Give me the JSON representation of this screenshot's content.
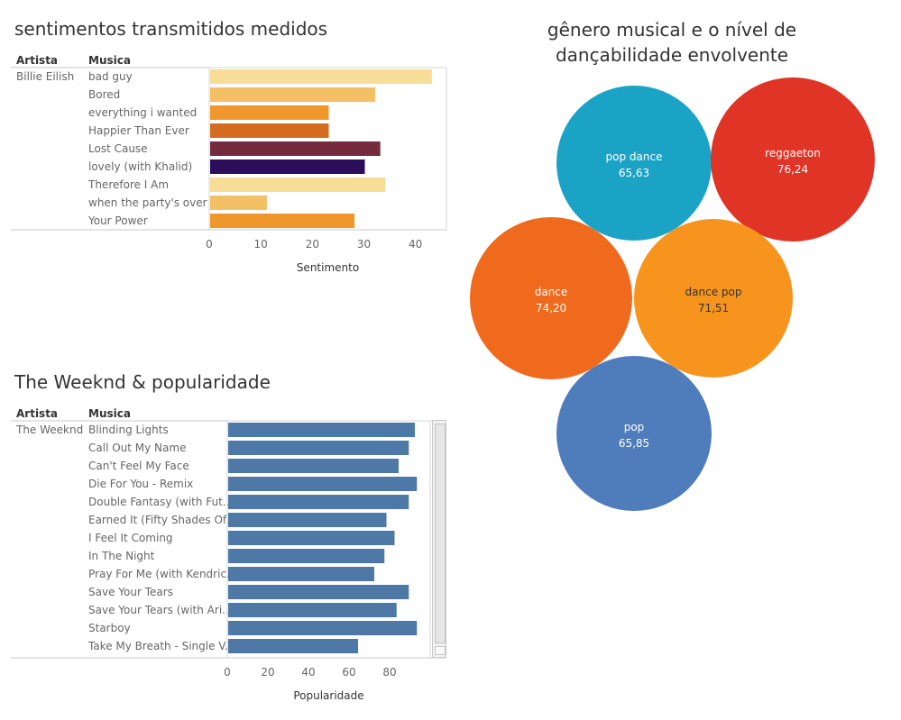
{
  "chart_data": [
    {
      "type": "bar",
      "title": "sentimentos transmitidos medidos",
      "row_headers": [
        "Artista",
        "Musica"
      ],
      "artist": "Billie Eilish",
      "categories": [
        "bad guy",
        "Bored",
        "everything i wanted",
        "Happier Than Ever",
        "Lost Cause",
        "lovely (with Khalid)",
        "Therefore I Am",
        "when the party's over",
        "Your Power"
      ],
      "values": [
        43,
        32,
        23,
        23,
        33,
        30,
        34,
        11,
        28
      ],
      "colors": [
        "#f7dd95",
        "#f4c064",
        "#f0972b",
        "#d36c1e",
        "#762a3e",
        "#2c0d5a",
        "#f7dd95",
        "#f4c064",
        "#f0972b"
      ],
      "xlabel": "Sentimento",
      "xticks": [
        0,
        10,
        20,
        30,
        40
      ],
      "xlim": [
        0,
        46
      ],
      "grid": false
    },
    {
      "type": "bar",
      "title": "The Weeknd & popularidade",
      "row_headers": [
        "Artista",
        "Musica"
      ],
      "artist": "The Weeknd",
      "categories": [
        "Blinding Lights",
        "Call Out My Name",
        "Can't Feel My Face",
        "Die For You - Remix",
        "Double Fantasy (with Fut..",
        "Earned It (Fifty Shades Of..",
        "I Feel It Coming",
        "In The Night",
        "Pray For Me (with Kendric..",
        "Save Your Tears",
        "Save Your Tears (with Ari..",
        "Starboy",
        "Take My Breath - Single V.."
      ],
      "values": [
        92,
        89,
        84,
        93,
        89,
        78,
        82,
        77,
        72,
        89,
        83,
        93,
        64
      ],
      "color": "#4e79a7",
      "xlabel": "Popularidade",
      "xticks": [
        0,
        20,
        40,
        60,
        80
      ],
      "xlim": [
        0,
        100
      ],
      "grid": false
    },
    {
      "type": "bubble",
      "title": "gênero musical e o nível de dançabilidade envolvente",
      "categories": [
        "pop dance",
        "reggaeton",
        "dance",
        "dance pop",
        "pop"
      ],
      "values": [
        "65,63",
        "76,24",
        "74,20",
        "71,51",
        "65,85"
      ],
      "numeric_values": [
        65.63,
        76.24,
        74.2,
        71.51,
        65.85
      ],
      "colors": [
        "#1ba3c6",
        "#e03426",
        "#ef6a1d",
        "#f7941d",
        "#4f7cbb"
      ],
      "label_colors": [
        "#ffffff",
        "#ffffff",
        "#ffffff",
        "#333333",
        "#ffffff"
      ]
    }
  ]
}
